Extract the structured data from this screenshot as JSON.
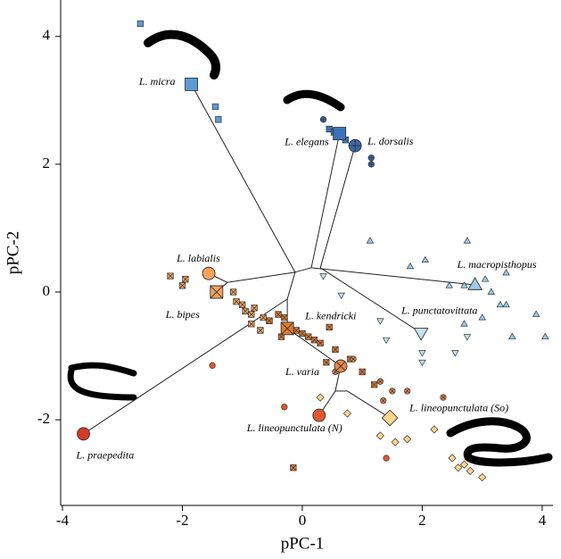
{
  "chart_data": {
    "type": "scatter",
    "xlabel": "pPC-1",
    "ylabel": "pPC-2",
    "xlim": [
      -4.03,
      4.18
    ],
    "ylim": [
      -3.34,
      4.57
    ],
    "xticks": [
      -4,
      -2,
      0,
      2,
      4
    ],
    "yticks": [
      -2,
      0,
      2,
      4
    ],
    "series": [
      {
        "name": "L. micra",
        "color": "#5b9bd5",
        "marker": "square",
        "mean_x": -1.85,
        "mean_y": 3.25,
        "x": [
          -2.7,
          -1.45,
          -1.4
        ],
        "y": [
          4.2,
          2.9,
          2.7
        ]
      },
      {
        "name": "L. elegans",
        "color": "#3d72b8",
        "marker": "square",
        "mean_x": 0.62,
        "mean_y": 2.48,
        "x": [
          0.45,
          0.53,
          0.72
        ],
        "y": [
          2.55,
          2.5,
          2.38
        ]
      },
      {
        "name": "L. dorsalis",
        "color": "#3a68aa",
        "marker": "circle-plus",
        "mean_x": 0.88,
        "mean_y": 2.29,
        "x": [
          0.35,
          1.15,
          1.15
        ],
        "y": [
          2.7,
          2.1,
          2.0
        ]
      },
      {
        "name": "L. macropisthopus",
        "color": "#9ccbe4",
        "marker": "triangle",
        "mean_x": 2.88,
        "mean_y": 0.11,
        "x": [
          1.13,
          1.8,
          2.05,
          2.75,
          2.7,
          3.05,
          3.4,
          3.15,
          3.3,
          3.4,
          3.9,
          2.7,
          3.0,
          3.5,
          4.05,
          2.45
        ],
        "y": [
          0.8,
          0.4,
          0.5,
          0.8,
          0.1,
          0.2,
          0.3,
          0.0,
          -0.2,
          -0.2,
          -0.35,
          -0.5,
          -0.4,
          -0.7,
          -0.7,
          0.1
        ]
      },
      {
        "name": "L. punctatovittata",
        "color": "#c5e2f0",
        "marker": "triangle-down",
        "mean_x": 1.98,
        "mean_y": -0.64,
        "x": [
          0.35,
          0.65,
          1.4,
          2.0,
          2.0,
          2.55,
          2.75,
          1.3
        ],
        "y": [
          0.25,
          -0.05,
          -0.75,
          -0.95,
          -1.1,
          -0.95,
          -0.7,
          -0.45
        ]
      },
      {
        "name": "L. labialis",
        "color": "#f5a45a",
        "marker": "circle",
        "mean_x": -1.56,
        "mean_y": 0.29,
        "x": [],
        "y": []
      },
      {
        "name": "L. bipes",
        "color": "#f2a35e",
        "marker": "square-x",
        "mean_x": -1.43,
        "mean_y": 0.0,
        "x": [
          -2.2,
          -1.95,
          -2.0,
          -1.15,
          -1.1,
          -1.0,
          -0.95,
          -0.85,
          -0.8,
          -0.65,
          -0.55,
          -0.85,
          -0.7
        ],
        "y": [
          0.25,
          0.2,
          0.1,
          0.0,
          -0.15,
          -0.2,
          -0.3,
          -0.35,
          -0.25,
          -0.4,
          -0.45,
          -0.5,
          -0.6
        ]
      },
      {
        "name": "L. kendricki",
        "color": "#e07b2f",
        "marker": "square-x",
        "mean_x": -0.25,
        "mean_y": -0.57,
        "x": [
          -0.4,
          -0.3,
          -0.2,
          -0.1,
          0.0,
          0.1,
          0.2,
          0.3,
          0.45,
          0.55,
          -0.55,
          -0.35,
          0.4,
          0.8,
          1.0,
          1.2,
          -0.15
        ],
        "y": [
          -0.35,
          -0.4,
          -0.55,
          -0.6,
          -0.65,
          -0.7,
          -0.75,
          -0.8,
          -0.55,
          -0.9,
          -0.45,
          -0.7,
          -1.1,
          -1.05,
          -1.25,
          -1.45,
          -2.75
        ]
      },
      {
        "name": "L. varia",
        "color": "#e9874a",
        "marker": "circle-x",
        "mean_x": 0.64,
        "mean_y": -1.16,
        "x": [
          0.85,
          1.3,
          1.5,
          1.35,
          1.75,
          2.35,
          0.55
        ],
        "y": [
          -1.05,
          -1.4,
          -1.55,
          -1.7,
          -1.55,
          -1.65,
          -1.25
        ]
      },
      {
        "name": "L. lineopunctulata (So)",
        "color": "#fcd58c",
        "marker": "diamond",
        "mean_x": 1.46,
        "mean_y": -1.97,
        "x": [
          0.3,
          0.75,
          1.3,
          1.55,
          1.75,
          2.2,
          2.5,
          2.6,
          2.7,
          3.0,
          2.8
        ],
        "y": [
          -1.65,
          -1.9,
          -2.25,
          -2.35,
          -2.3,
          -2.15,
          -2.6,
          -2.75,
          -2.7,
          -2.9,
          -2.8
        ]
      },
      {
        "name": "L. lineopunctulata (N)",
        "color": "#e5572f",
        "marker": "circle",
        "mean_x": 0.28,
        "mean_y": -1.93,
        "x": [
          -0.3,
          1.4,
          -1.5
        ],
        "y": [
          -1.8,
          -2.6,
          -1.15
        ]
      },
      {
        "name": "L. praepedita",
        "color": "#d23b28",
        "marker": "circle",
        "mean_x": -3.65,
        "mean_y": -2.22,
        "x": [],
        "y": []
      }
    ],
    "tree_branches": [
      {
        "x": [
          -0.12,
          -1.85
        ],
        "y": [
          0.31,
          3.25
        ]
      },
      {
        "x": [
          -0.12,
          0.15
        ],
        "y": [
          0.31,
          0.38
        ]
      },
      {
        "x": [
          0.15,
          0.62
        ],
        "y": [
          0.38,
          2.48
        ]
      },
      {
        "x": [
          0.3,
          0.88
        ],
        "y": [
          0.38,
          2.29
        ]
      },
      {
        "x": [
          0.15,
          2.88
        ],
        "y": [
          0.38,
          0.11
        ]
      },
      {
        "x": [
          0.3,
          1.98
        ],
        "y": [
          0.38,
          -0.64
        ]
      },
      {
        "x": [
          -0.12,
          -1.25
        ],
        "y": [
          0.31,
          0.15
        ]
      },
      {
        "x": [
          -1.25,
          -1.56
        ],
        "y": [
          0.15,
          0.29
        ]
      },
      {
        "x": [
          -1.25,
          -1.43
        ],
        "y": [
          0.15,
          0.0
        ]
      },
      {
        "x": [
          -0.12,
          -0.25
        ],
        "y": [
          0.31,
          -0.11
        ]
      },
      {
        "x": [
          -0.25,
          -3.65
        ],
        "y": [
          -0.11,
          -2.22
        ]
      },
      {
        "x": [
          -0.25,
          -0.25
        ],
        "y": [
          -0.11,
          -0.57
        ]
      },
      {
        "x": [
          -0.25,
          0.64
        ],
        "y": [
          -0.57,
          -1.16
        ]
      },
      {
        "x": [
          0.64,
          0.55
        ],
        "y": [
          -1.16,
          -1.55
        ]
      },
      {
        "x": [
          0.55,
          0.28
        ],
        "y": [
          -1.55,
          -1.93
        ]
      },
      {
        "x": [
          0.55,
          0.75
        ],
        "y": [
          -1.55,
          -1.55
        ]
      },
      {
        "x": [
          0.75,
          1.46
        ],
        "y": [
          -1.55,
          -1.97
        ]
      }
    ]
  }
}
